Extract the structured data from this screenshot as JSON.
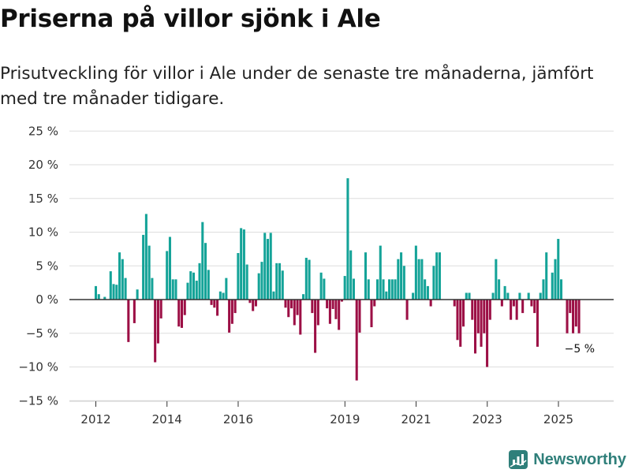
{
  "header": {
    "title": "Priserna på villor sjönk i Ale",
    "subtitle": "Prisutveckling för villor i Ale under de senaste tre månaderna, jämfört med tre månader tidigare."
  },
  "brand": {
    "name": "Newsworthy",
    "color": "#2f7f7a"
  },
  "colors": {
    "positive": "#14a398",
    "negative": "#9c0f45"
  },
  "chart_data": {
    "type": "bar",
    "title": "Priserna på villor sjönk i Ale",
    "ylim": [
      -15,
      25
    ],
    "yticks": [
      -15,
      -10,
      -5,
      0,
      5,
      10,
      15,
      20,
      25
    ],
    "ytick_labels": [
      "−15 %",
      "−10 %",
      "−5 %",
      "0 %",
      "5 %",
      "10 %",
      "15 %",
      "20 %",
      "25 %"
    ],
    "xticks": [
      {
        "label": "2012",
        "year": 2012.0
      },
      {
        "label": "2014",
        "year": 2014.0
      },
      {
        "label": "2016",
        "year": 2016.0
      },
      {
        "label": "2019",
        "year": 2019.0
      },
      {
        "label": "2021",
        "year": 2021.0
      },
      {
        "label": "2023",
        "year": 2023.0
      },
      {
        "label": "2025",
        "year": 2025.0
      }
    ],
    "x_start": 2012.0,
    "x_step": 0.0833,
    "annotation": {
      "text": "−5 %",
      "index": 163
    },
    "values": [
      2,
      0.8,
      0,
      0.4,
      0,
      4.2,
      2.3,
      2.2,
      7,
      6,
      3.2,
      -6.3,
      0,
      -3.5,
      1.5,
      0,
      9.6,
      12.7,
      8,
      3.2,
      -9.3,
      -6.5,
      -2.8,
      0,
      7.2,
      9.3,
      3,
      3,
      -4,
      -4.2,
      -2.3,
      2.5,
      4.2,
      4,
      2.8,
      5.4,
      11.5,
      8.4,
      4.4,
      -0.8,
      -1.2,
      -2.4,
      1.2,
      1,
      3.2,
      -4.9,
      -3.6,
      -2,
      6.9,
      10.6,
      10.4,
      5.2,
      -0.5,
      -1.7,
      -1,
      3.9,
      5.6,
      9.9,
      9,
      9.9,
      1.2,
      5.4,
      5.4,
      4.3,
      -1.2,
      -2.6,
      -1.3,
      -3.8,
      -2.3,
      -5.2,
      0.8,
      6.2,
      5.9,
      -2,
      -7.9,
      -3.8,
      4,
      3.1,
      -1.3,
      -3.6,
      -1.4,
      -2.9,
      -4.5,
      -0.3,
      3.5,
      18,
      7.3,
      3.1,
      -12,
      -4.9,
      0,
      7,
      3,
      -4.1,
      -1,
      3,
      8,
      3,
      1.2,
      3,
      3,
      3,
      6,
      7,
      5,
      -3,
      0,
      1,
      8,
      6,
      6,
      3,
      2,
      -1,
      5,
      7,
      7,
      0,
      0,
      0,
      0,
      -1,
      -6,
      -7,
      -4,
      1,
      1,
      -3,
      -8,
      -5,
      -7,
      -5,
      -10,
      -3,
      1,
      6,
      3,
      -1,
      2,
      1,
      -3,
      -1,
      -3,
      1,
      -2,
      0,
      1,
      -1,
      -2,
      -7,
      1,
      3,
      7,
      0,
      4,
      6,
      9,
      3,
      0,
      -5,
      -2,
      -5,
      -4,
      -5
    ]
  }
}
